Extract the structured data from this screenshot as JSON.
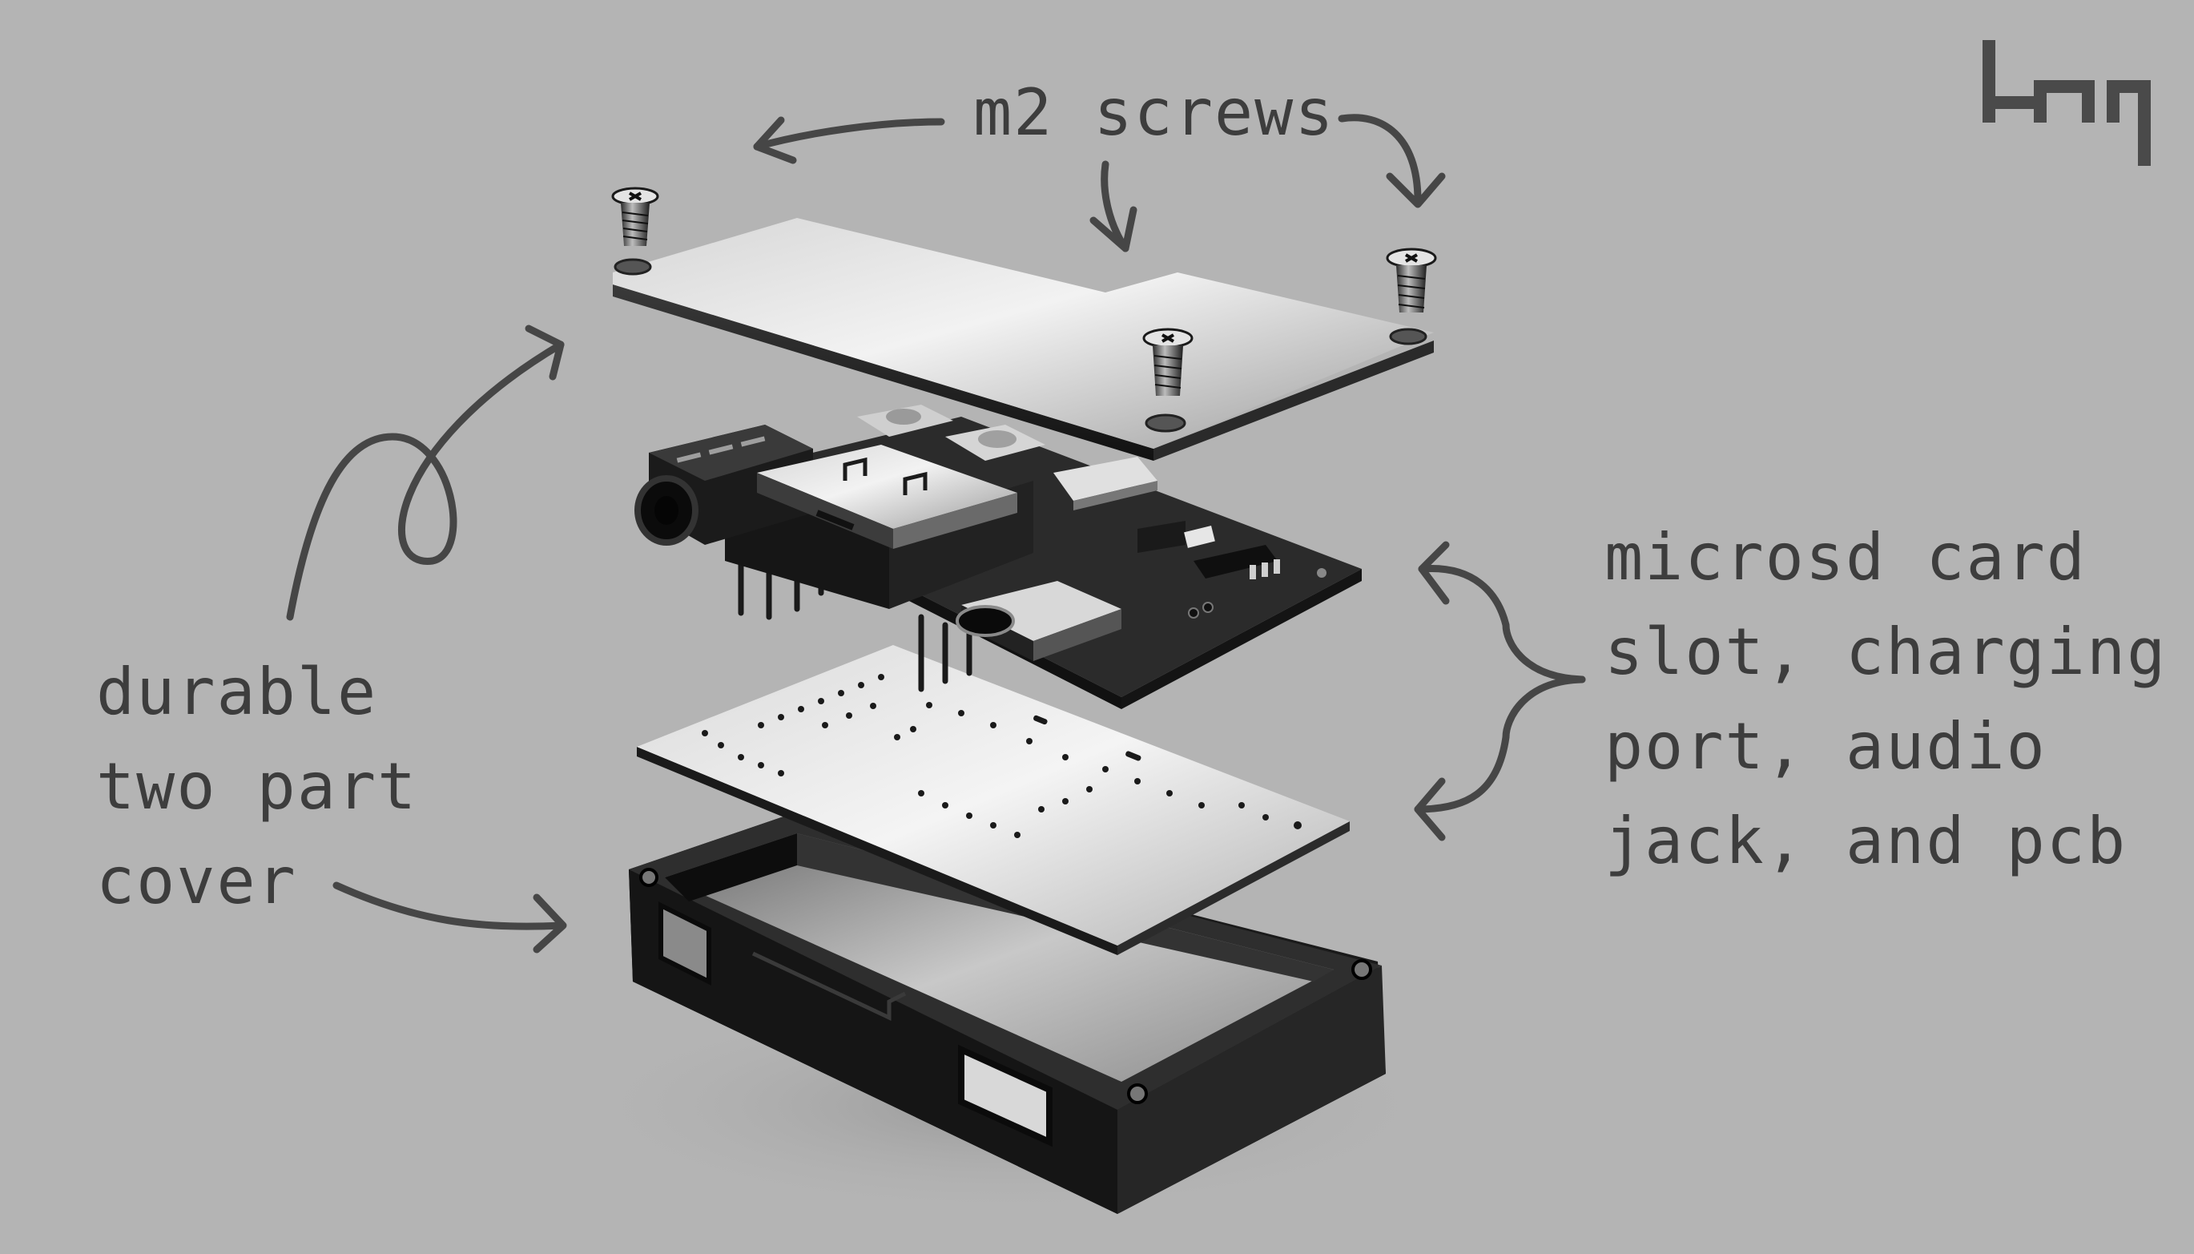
{
  "callouts": {
    "screws": {
      "text": "m2 screws"
    },
    "cover": {
      "lines": [
        "durable",
        "two part",
        "cover"
      ]
    },
    "components": {
      "lines": [
        "microsd card",
        "slot, charging",
        "port, audio",
        "jack, and pcb"
      ]
    }
  },
  "logo": {
    "icon": "brand-logo-icon",
    "color": "#4a4a4a"
  },
  "colors": {
    "background": "#b4b4b4",
    "ink": "#3d3d3d",
    "aluminium_light": "#e2e2e2",
    "aluminium_dark": "#1d1d1d"
  },
  "parts": [
    {
      "name": "top-plate",
      "icon": "top-plate-icon"
    },
    {
      "name": "m2-screw",
      "icon": "screw-icon"
    },
    {
      "name": "pcb-assembly",
      "icon": "pcb-icon"
    },
    {
      "name": "microsd-slot",
      "icon": "microsd-slot-icon"
    },
    {
      "name": "usb-c-port",
      "icon": "usb-c-port-icon"
    },
    {
      "name": "audio-jack",
      "icon": "audio-jack-icon"
    },
    {
      "name": "bottom-plate",
      "icon": "bottom-plate-icon"
    },
    {
      "name": "enclosure",
      "icon": "enclosure-icon"
    }
  ]
}
